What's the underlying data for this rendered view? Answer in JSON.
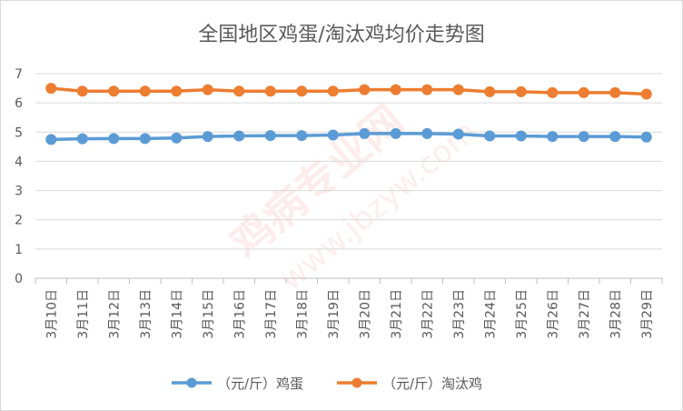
{
  "chart_data": {
    "type": "line",
    "title": "全国地区鸡蛋/淘汰鸡均价走势图",
    "categories": [
      "3月10日",
      "3月11日",
      "3月12日",
      "3月13日",
      "3月14日",
      "3月15日",
      "3月16日",
      "3月17日",
      "3月18日",
      "3月19日",
      "3月20日",
      "3月21日",
      "3月22日",
      "3月23日",
      "3月24日",
      "3月25日",
      "3月26日",
      "3月27日",
      "3月28日",
      "3月29日"
    ],
    "ylim": [
      0,
      7
    ],
    "yticks": [
      "0",
      "1",
      "2",
      "3",
      "4",
      "5",
      "6",
      "7"
    ],
    "grid": true,
    "legend_position": "bottom",
    "series": [
      {
        "name": "（元/斤）鸡蛋",
        "color": "#5b9bd5",
        "values": [
          4.75,
          4.77,
          4.78,
          4.78,
          4.8,
          4.85,
          4.87,
          4.88,
          4.88,
          4.9,
          4.95,
          4.95,
          4.95,
          4.93,
          4.87,
          4.87,
          4.85,
          4.85,
          4.85,
          4.83
        ]
      },
      {
        "name": "（元/斤）淘汰鸡",
        "color": "#ed7d31",
        "values": [
          6.5,
          6.4,
          6.4,
          6.4,
          6.4,
          6.45,
          6.4,
          6.4,
          6.4,
          6.4,
          6.45,
          6.45,
          6.45,
          6.45,
          6.38,
          6.38,
          6.35,
          6.35,
          6.35,
          6.3
        ]
      }
    ],
    "watermark": {
      "text_main": "鸡病专业网",
      "text_url": "www.jbzyw.com"
    }
  }
}
